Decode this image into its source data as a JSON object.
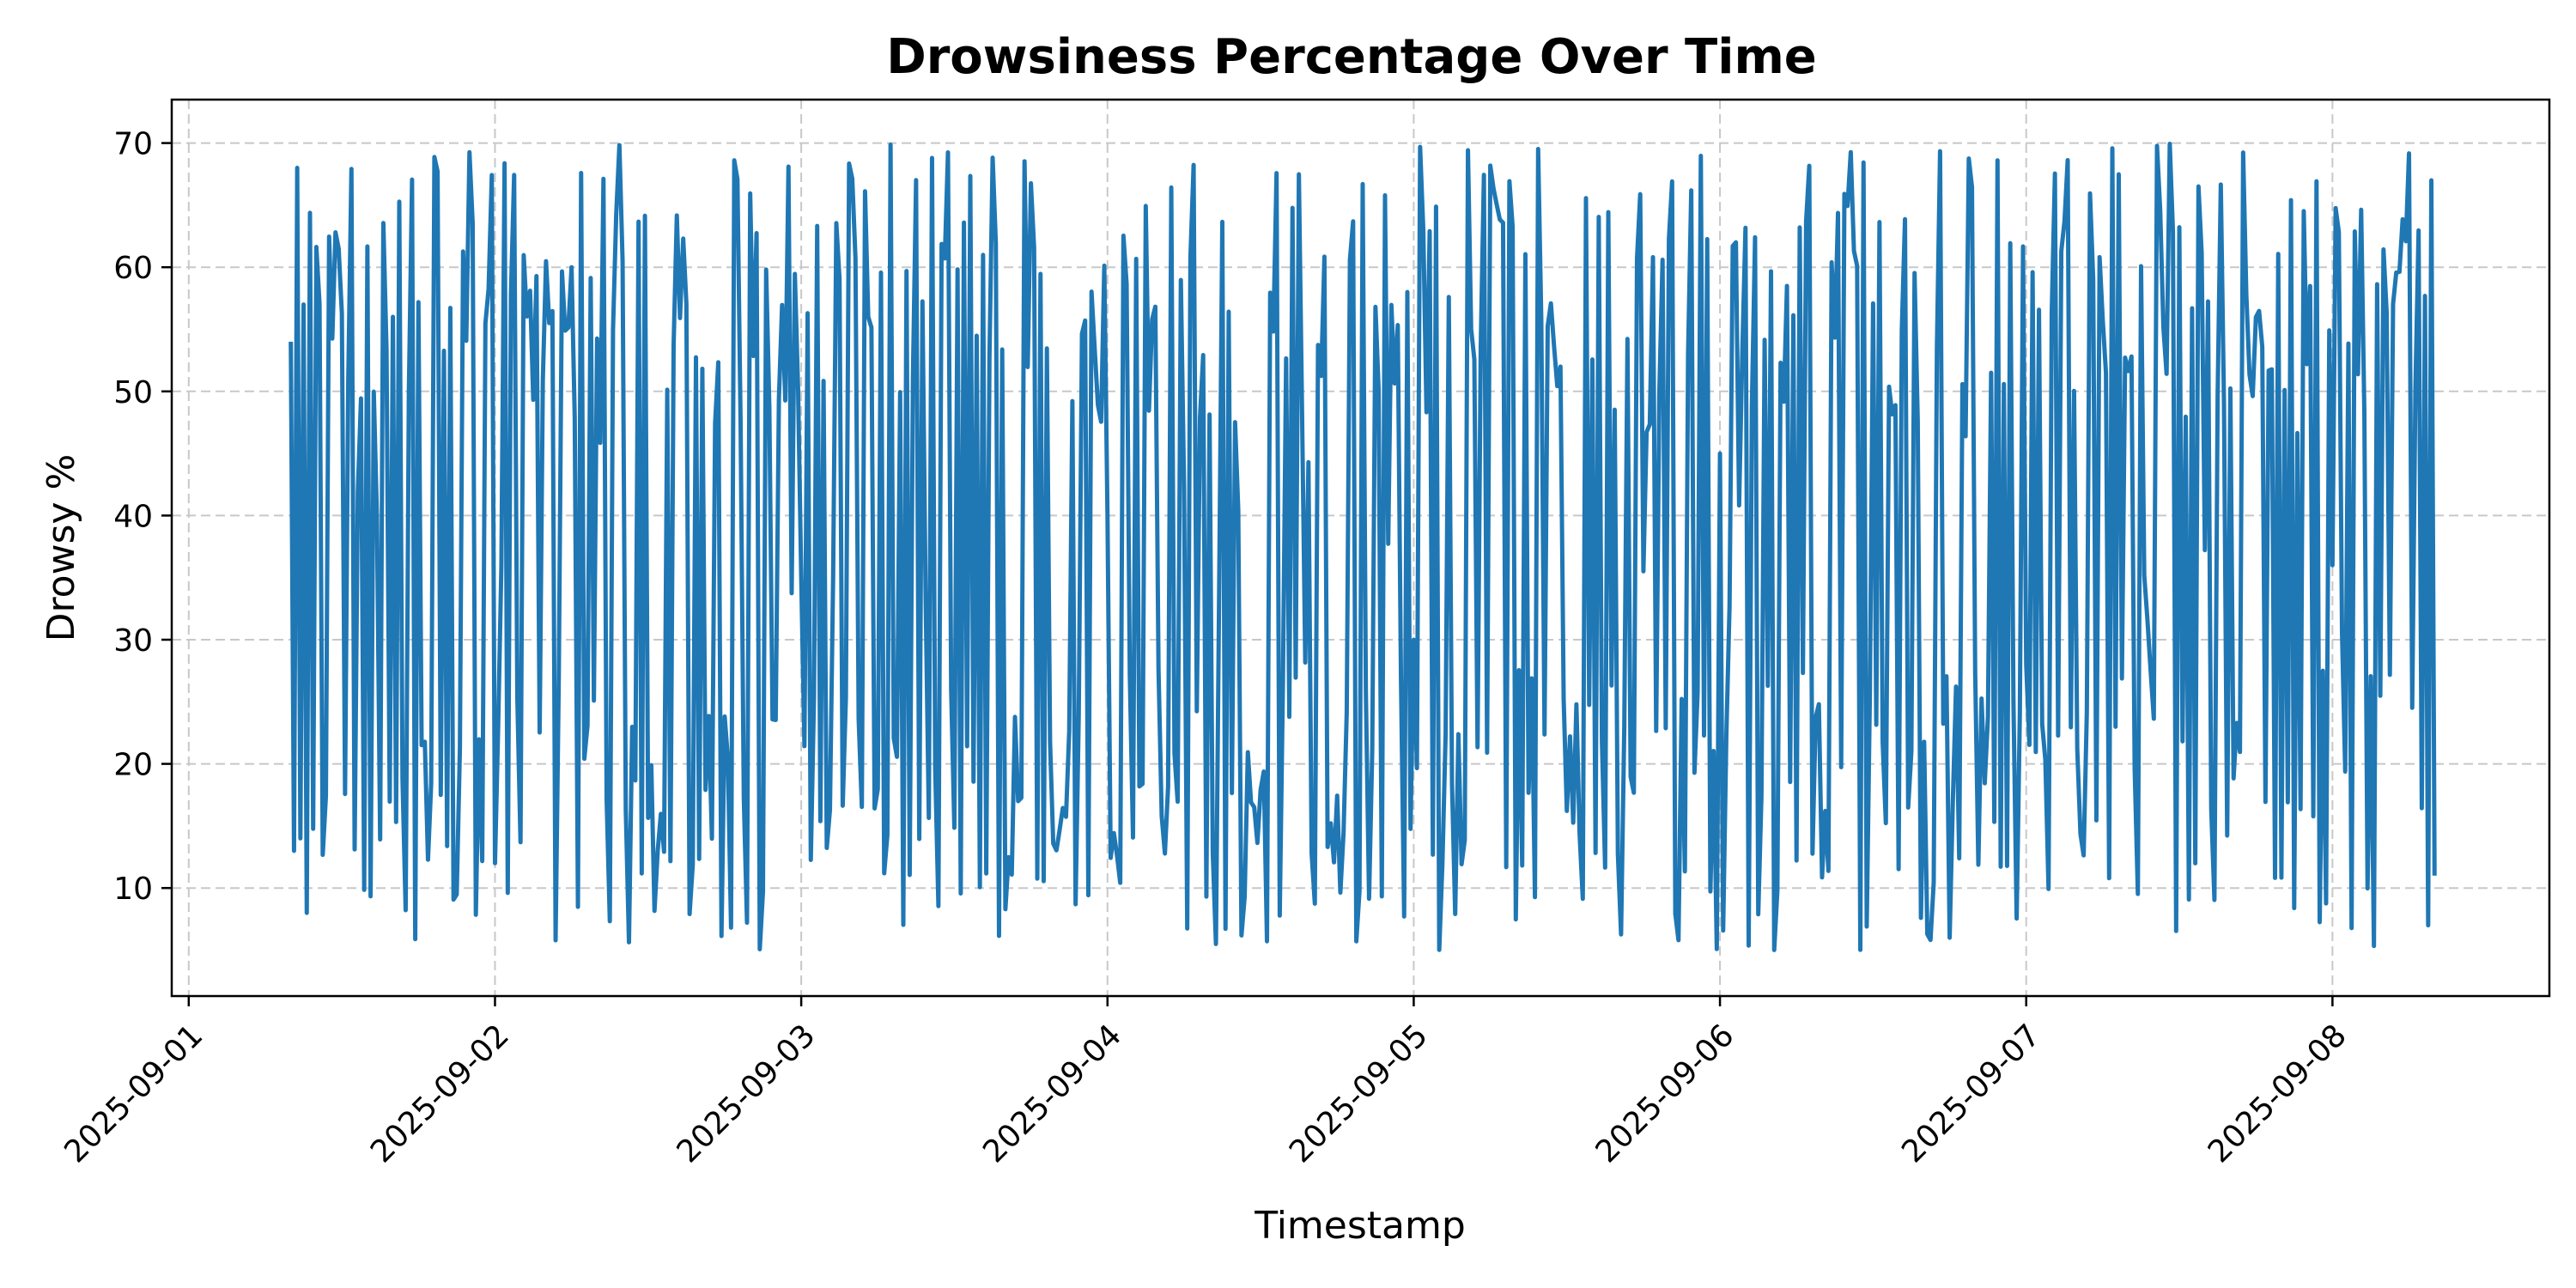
{
  "chart_data": {
    "type": "line",
    "title": "Drowsiness Percentage Over Time",
    "xlabel": "Timestamp",
    "ylabel": "Drowsy %",
    "x_type": "date",
    "xlim": [
      "2025-09-00T22:40",
      "2025-09-08T17:00"
    ],
    "ylim": [
      1.3,
      73.5
    ],
    "x_ticks": [
      "2025-09-01",
      "2025-09-02",
      "2025-09-03",
      "2025-09-04",
      "2025-09-05",
      "2025-09-06",
      "2025-09-07",
      "2025-09-08"
    ],
    "y_ticks": [
      10,
      20,
      30,
      40,
      50,
      60,
      70
    ],
    "grid": true,
    "series_color": "#1f77b4",
    "data_start": "2025-09-01T08:00",
    "data_end": "2025-09-08T08:00",
    "sample_interval_minutes": 15,
    "value_range": [
      5,
      70
    ],
    "series": [
      {
        "name": "",
        "points": [
          [
            "2025-09-01T08:00",
            54
          ],
          [
            "2025-09-01T08:15",
            13
          ],
          [
            "2025-09-01T08:30",
            68
          ],
          [
            "2025-09-01T08:45",
            14
          ],
          [
            "2025-09-01T09:00",
            57
          ],
          [
            "2025-09-01T09:15",
            8
          ],
          [
            "2025-09-02T00:00",
            12
          ],
          [
            "2025-09-02T06:00",
            60
          ],
          [
            "2025-09-03T00:00",
            35
          ],
          [
            "2025-09-04T00:00",
            40
          ],
          [
            "2025-09-05T00:00",
            30
          ],
          [
            "2025-09-06T00:00",
            45
          ],
          [
            "2025-09-07T00:00",
            28
          ],
          [
            "2025-09-08T00:00",
            36
          ],
          [
            "2025-09-08T07:30",
            7
          ],
          [
            "2025-09-08T07:45",
            67
          ],
          [
            "2025-09-08T08:00",
            11
          ]
        ]
      }
    ]
  }
}
